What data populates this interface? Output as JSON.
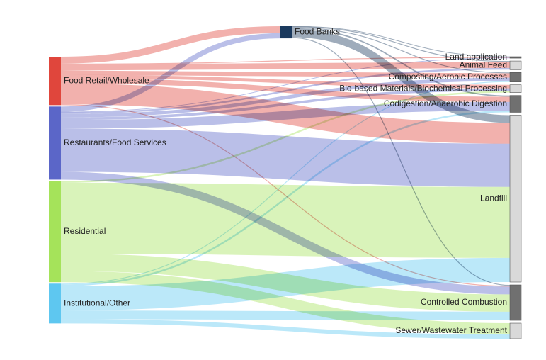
{
  "chart_data": {
    "type": "sankey",
    "title": "",
    "sources": [
      {
        "id": "retail",
        "label": "Food Retail/Wholesale",
        "color": "#e0463c"
      },
      {
        "id": "rest",
        "label": "Restaurants/Food Services",
        "color": "#5b66c8"
      },
      {
        "id": "res",
        "label": "Residential",
        "color": "#a5e35a"
      },
      {
        "id": "inst",
        "label": "Institutional/Other",
        "color": "#5ec7f0"
      }
    ],
    "intermediate": [
      {
        "id": "fb",
        "label": "Food Banks",
        "color": "#1b3a5e"
      }
    ],
    "targets": [
      {
        "id": "land",
        "label": "Land application",
        "color": "#666666"
      },
      {
        "id": "feed",
        "label": "Animal Feed",
        "color": "#d9d9d9"
      },
      {
        "id": "comp",
        "label": "Composting/Aerobic Processes",
        "color": "#707070"
      },
      {
        "id": "bio",
        "label": "Bio-based Materials/Biochemical Processing",
        "color": "#d9d9d9"
      },
      {
        "id": "codig",
        "label": "Codigestion/Anaerobic Digestion",
        "color": "#707070"
      },
      {
        "id": "lf",
        "label": "Landfill",
        "color": "#d9d9d9"
      },
      {
        "id": "cc",
        "label": "Controlled Combustion",
        "color": "#707070"
      },
      {
        "id": "sew",
        "label": "Sewer/Wastewater Treatment",
        "color": "#d9d9d9"
      }
    ],
    "links": [
      {
        "source": "retail",
        "target": "fb",
        "value": 8
      },
      {
        "source": "retail",
        "target": "land",
        "value": 1
      },
      {
        "source": "retail",
        "target": "feed",
        "value": 7
      },
      {
        "source": "retail",
        "target": "comp",
        "value": 5
      },
      {
        "source": "retail",
        "target": "bio",
        "value": 4
      },
      {
        "source": "retail",
        "target": "codig",
        "value": 6
      },
      {
        "source": "retail",
        "target": "lf",
        "value": 24
      },
      {
        "source": "retail",
        "target": "cc",
        "value": 1
      },
      {
        "source": "rest",
        "target": "fb",
        "value": 6
      },
      {
        "source": "rest",
        "target": "land",
        "value": 0.5
      },
      {
        "source": "rest",
        "target": "feed",
        "value": 2
      },
      {
        "source": "rest",
        "target": "comp",
        "value": 4
      },
      {
        "source": "rest",
        "target": "bio",
        "value": 3
      },
      {
        "source": "rest",
        "target": "codig",
        "value": 10
      },
      {
        "source": "rest",
        "target": "lf",
        "value": 50
      },
      {
        "source": "rest",
        "target": "cc",
        "value": 9
      },
      {
        "source": "res",
        "target": "bio",
        "value": 2
      },
      {
        "source": "res",
        "target": "lf",
        "value": 82
      },
      {
        "source": "res",
        "target": "cc",
        "value": 20
      },
      {
        "source": "res",
        "target": "sew",
        "value": 13
      },
      {
        "source": "inst",
        "target": "comp",
        "value": 1
      },
      {
        "source": "inst",
        "target": "codig",
        "value": 2
      },
      {
        "source": "inst",
        "target": "lf",
        "value": 28
      },
      {
        "source": "inst",
        "target": "cc",
        "value": 10
      },
      {
        "source": "inst",
        "target": "sew",
        "value": 5
      },
      {
        "source": "fb",
        "target": "land",
        "value": 0.2
      },
      {
        "source": "fb",
        "target": "feed",
        "value": 1
      },
      {
        "source": "fb",
        "target": "comp",
        "value": 1
      },
      {
        "source": "fb",
        "target": "codig",
        "value": 1.5
      },
      {
        "source": "fb",
        "target": "lf",
        "value": 9
      },
      {
        "source": "fb",
        "target": "cc",
        "value": 1
      }
    ]
  }
}
